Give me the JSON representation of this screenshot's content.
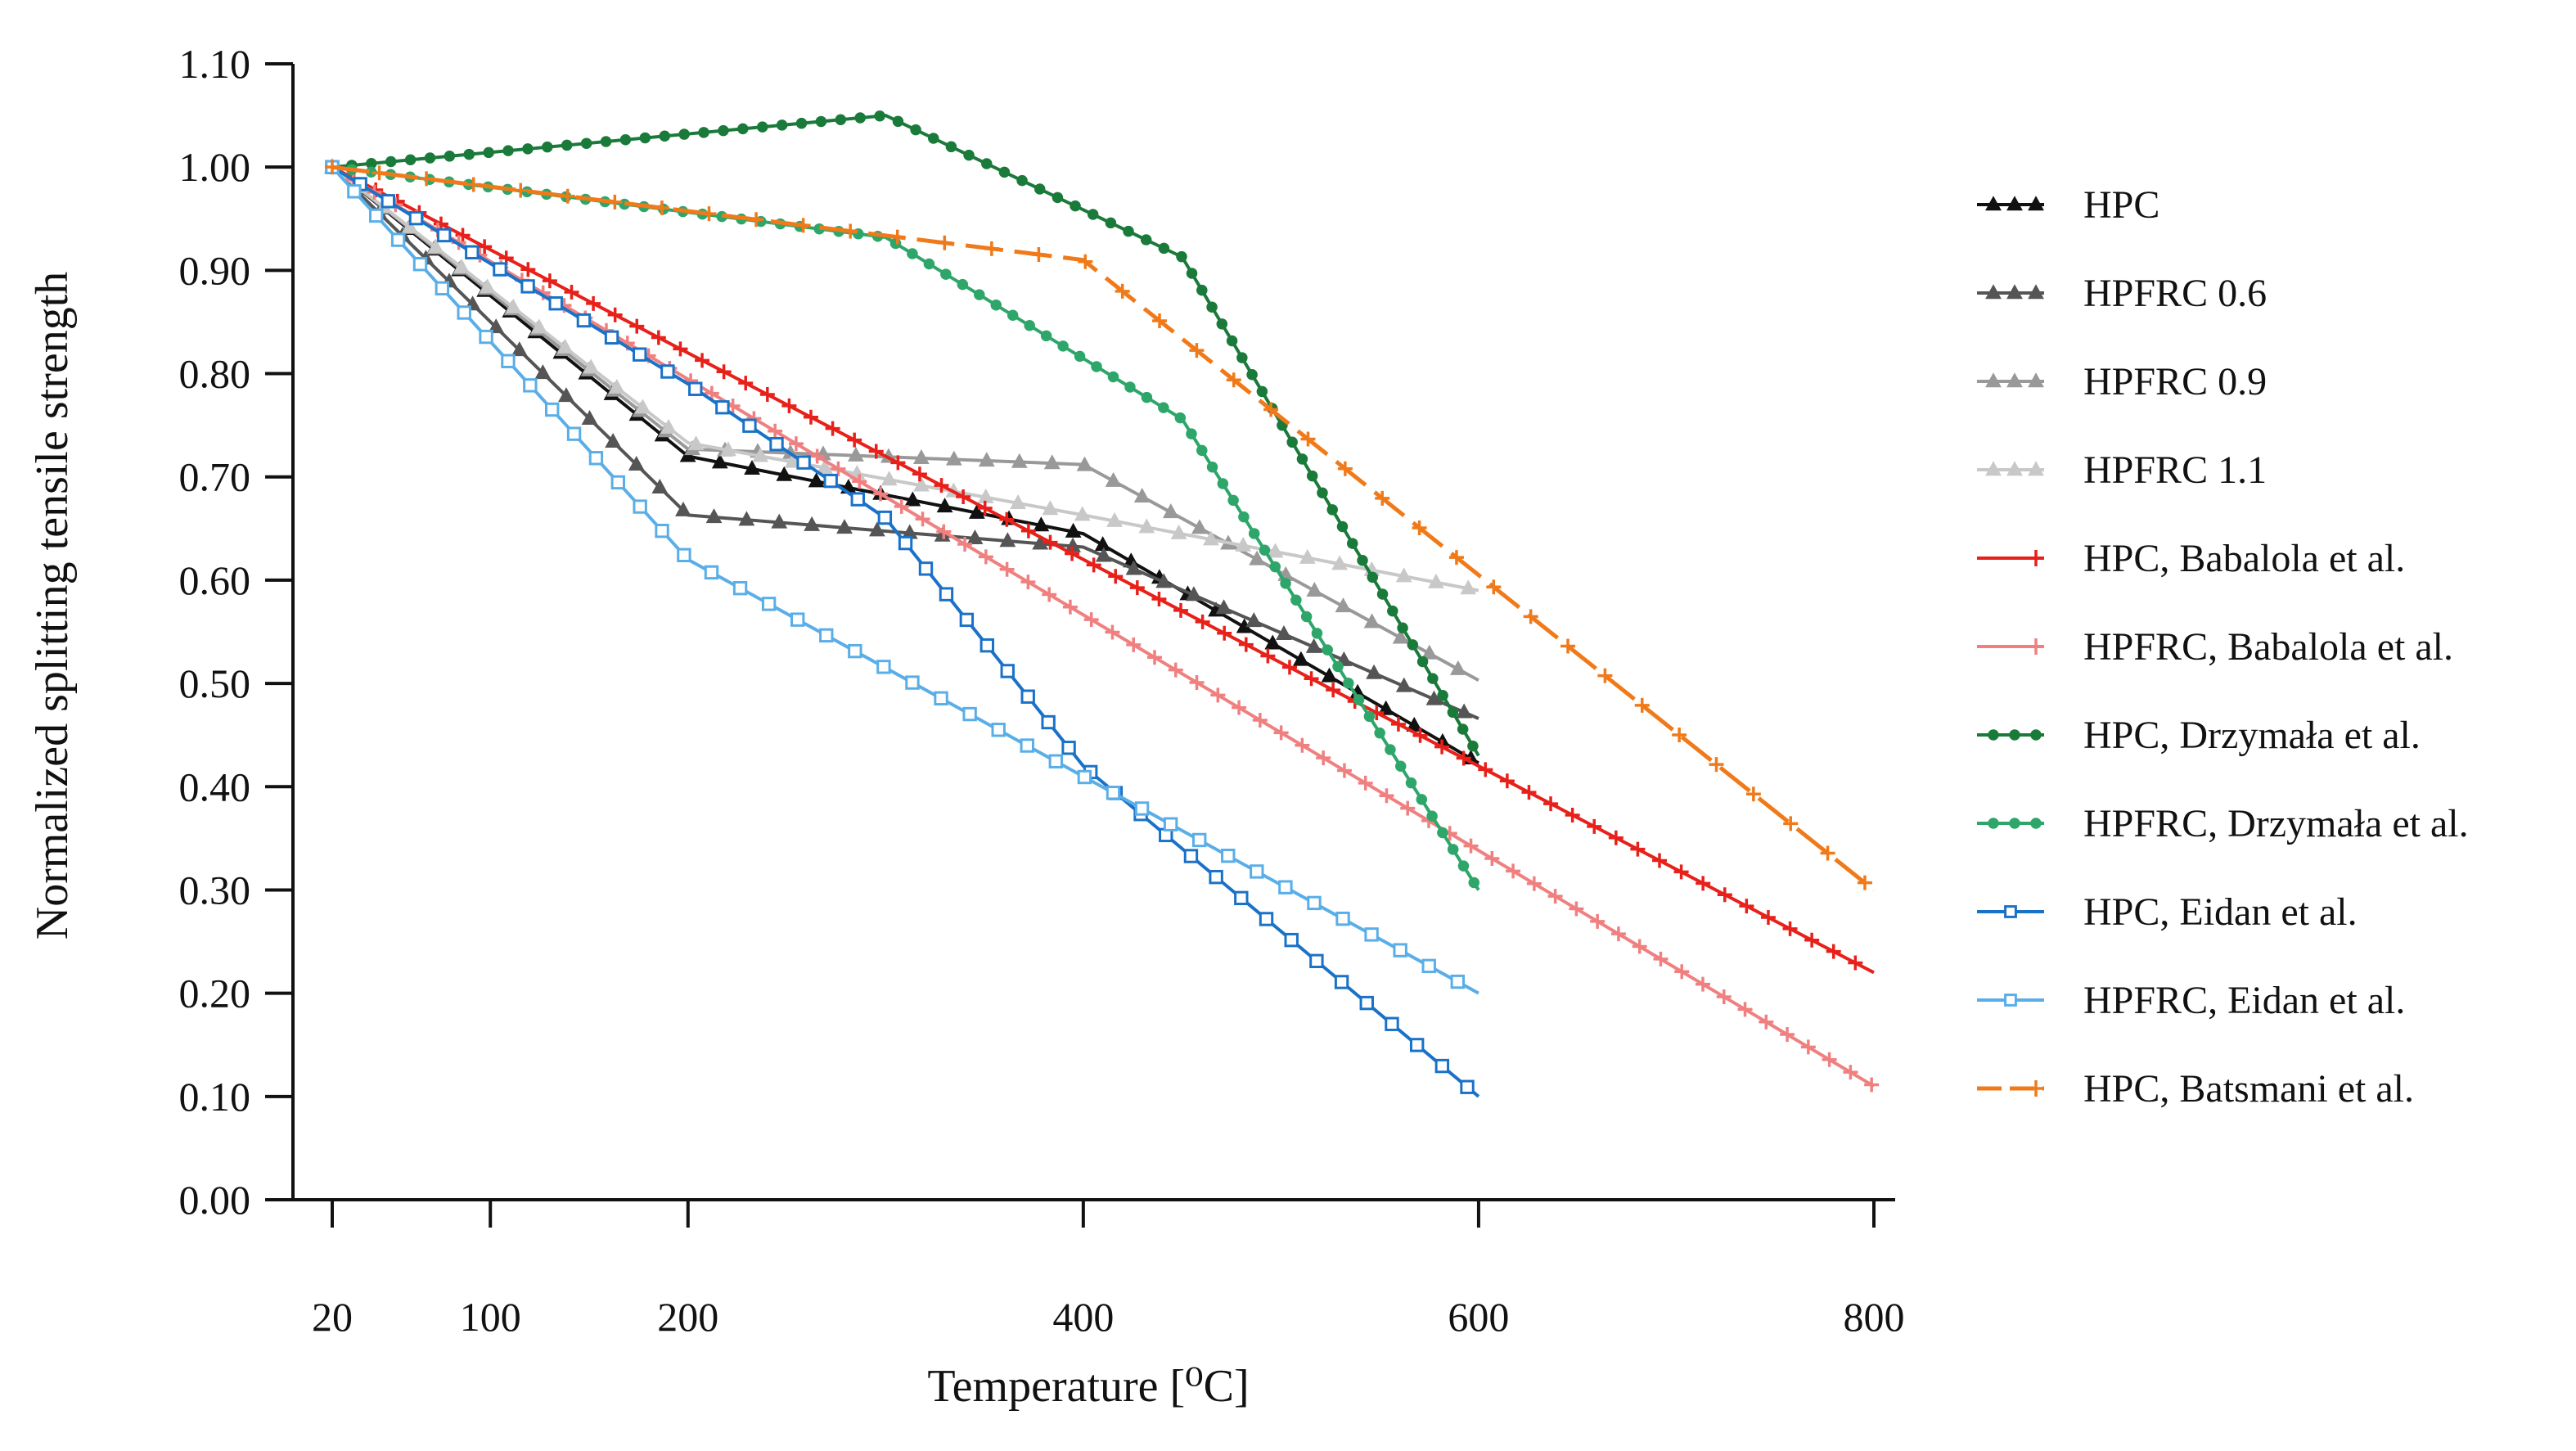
{
  "chart_data": {
    "type": "line",
    "xlabel": "Temperature [⁰C]",
    "ylabel": "Normalized splitting tensile strength",
    "xlim": [
      20,
      800
    ],
    "ylim": [
      0,
      1.1
    ],
    "x_ticks": [
      20,
      100,
      200,
      400,
      600,
      800
    ],
    "y_ticks": [
      "0.00",
      "0.10",
      "0.20",
      "0.30",
      "0.40",
      "0.50",
      "0.60",
      "0.70",
      "0.80",
      "0.90",
      "1.00",
      "1.10"
    ],
    "grid": false,
    "legend_position": "right",
    "series": [
      {
        "name": "HPC",
        "x": [
          20,
          200,
          400,
          600
        ],
        "y": [
          1.0,
          0.72,
          0.645,
          0.423
        ],
        "color": "#111111",
        "marker": "triangle",
        "dash": "solid"
      },
      {
        "name": "HPFRC 0.6",
        "x": [
          20,
          200,
          400,
          600
        ],
        "y": [
          1.0,
          0.663,
          0.632,
          0.466
        ],
        "color": "#555555",
        "marker": "triangle",
        "dash": "solid"
      },
      {
        "name": "HPFRC 0.9",
        "x": [
          20,
          200,
          400,
          600
        ],
        "y": [
          1.0,
          0.727,
          0.712,
          0.503
        ],
        "color": "#999999",
        "marker": "triangle",
        "dash": "solid"
      },
      {
        "name": "HPFRC 1.1",
        "x": [
          20,
          200,
          400,
          600
        ],
        "y": [
          1.0,
          0.733,
          0.663,
          0.59
        ],
        "color": "#c8c8c8",
        "marker": "triangle",
        "dash": "solid"
      },
      {
        "name": "HPC, Babalola et al.",
        "x": [
          20,
          800
        ],
        "y": [
          1.0,
          0.22
        ],
        "color": "#e8201a",
        "marker": "plus",
        "dash": "solid"
      },
      {
        "name": "HPFRC, Babalola et al.",
        "x": [
          20,
          800
        ],
        "y": [
          1.0,
          0.11
        ],
        "color": "#f08080",
        "marker": "plus",
        "dash": "solid"
      },
      {
        "name": "HPC, Drzymała et al.",
        "x": [
          20,
          300,
          450,
          600
        ],
        "y": [
          1.0,
          1.05,
          0.913,
          0.43
        ],
        "color": "#1a7a3a",
        "marker": "circle",
        "dash": "solid"
      },
      {
        "name": "HPFRC, Drzymała et al.",
        "x": [
          20,
          300,
          450,
          600
        ],
        "y": [
          1.0,
          0.932,
          0.756,
          0.3
        ],
        "color": "#2ea66a",
        "marker": "circle",
        "dash": "solid"
      },
      {
        "name": "HPC, Eidan et al.",
        "x": [
          20,
          200,
          300,
          400,
          600
        ],
        "y": [
          1.0,
          0.79,
          0.66,
          0.42,
          0.1
        ],
        "color": "#1a72c8",
        "marker": "square",
        "dash": "solid"
      },
      {
        "name": "HPFRC, Eidan et al.",
        "x": [
          20,
          200,
          400,
          600
        ],
        "y": [
          1.0,
          0.62,
          0.41,
          0.2
        ],
        "color": "#5aaee8",
        "marker": "square",
        "dash": "solid"
      },
      {
        "name": "HPC, Batsmani et al.",
        "x": [
          20,
          400,
          800
        ],
        "y": [
          1.0,
          0.91,
          0.3
        ],
        "color": "#f07a1a",
        "marker": "plus",
        "dash": "dashed"
      }
    ]
  }
}
